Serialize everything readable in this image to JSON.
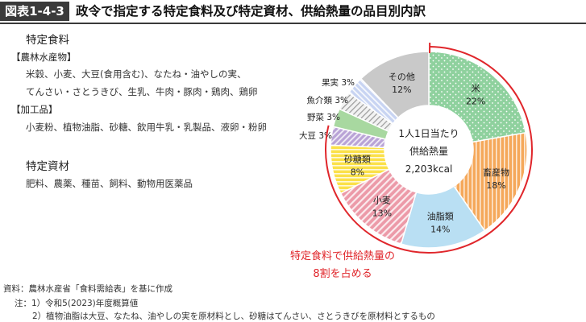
{
  "header": {
    "figure_label": "図表1-4-3",
    "title": "政令で指定する特定食料及び特定資材、供給熱量の品目別内訳"
  },
  "left_panel": {
    "food": {
      "title": "特定食料",
      "groups": [
        {
          "heading": "【農林水産物】",
          "lines": [
            "米穀、小麦、大豆(食用含む)、なたね・油やしの実、",
            "てんさい・さとうきび、生乳、牛肉・豚肉・鶏肉、鶏卵"
          ]
        },
        {
          "heading": "【加工品】",
          "lines": [
            "小麦粉、植物油脂、砂糖、飲用牛乳・乳製品、液卵・粉卵"
          ]
        }
      ]
    },
    "materials": {
      "title": "特定資材",
      "lines": [
        "肥料、農薬、種苗、飼料、動物用医薬品"
      ]
    }
  },
  "chart_data": {
    "type": "pie",
    "donut": true,
    "center_label": [
      "1人1日当たり",
      "供給熱量",
      "2,203kcal"
    ],
    "slices": [
      {
        "name": "米",
        "value": 22,
        "label": "22%",
        "color": "#8fd19e",
        "pattern": "dots",
        "label_place": "inside"
      },
      {
        "name": "畜産物",
        "value": 18,
        "label": "18%",
        "color": "#f5a85a",
        "pattern": "vstripes",
        "label_place": "inside"
      },
      {
        "name": "油脂類",
        "value": 14,
        "label": "14%",
        "color": "#b9dff3",
        "pattern": "solid",
        "label_place": "inside"
      },
      {
        "name": "小麦",
        "value": 13,
        "label": "13%",
        "color": "#ec9aa8",
        "pattern": "dstripes",
        "label_place": "inside"
      },
      {
        "name": "砂糖類",
        "value": 8,
        "label": "8%",
        "color": "#fbe14a",
        "pattern": "hstripes",
        "label_place": "inside"
      },
      {
        "name": "大豆",
        "value": 3,
        "label": "3%",
        "color": "#b9a3d6",
        "pattern": "dstripes",
        "label_place": "outside"
      },
      {
        "name": "野菜",
        "value": 3,
        "label": "3%",
        "color": "#a8d8a0",
        "pattern": "solid",
        "label_place": "outside"
      },
      {
        "name": "魚介類",
        "value": 3,
        "label": "3%",
        "color": "#e6e6e6",
        "pattern": "hatch",
        "label_place": "outside"
      },
      {
        "name": "果実",
        "value": 3,
        "label": "3%",
        "color": "#c8d4f2",
        "pattern": "dstripes",
        "label_place": "outside"
      },
      {
        "name": "その他",
        "value": 12,
        "label": "12%",
        "color": "#c9c9c9",
        "pattern": "solid",
        "label_place": "inside"
      }
    ],
    "annotation": [
      "特定食料で供給熱量の",
      "8割を占める"
    ],
    "annotation_color": "#e0262b"
  },
  "footer": {
    "source": "資料：農林水産省「食料需給表」を基に作成",
    "notes": [
      "注：1）令和5(2023)年度概算値",
      "2）植物油脂は大豆、なたね、油やしの実を原材料とし、砂糖はてんさい、さとうきびを原材料とするもの"
    ]
  }
}
